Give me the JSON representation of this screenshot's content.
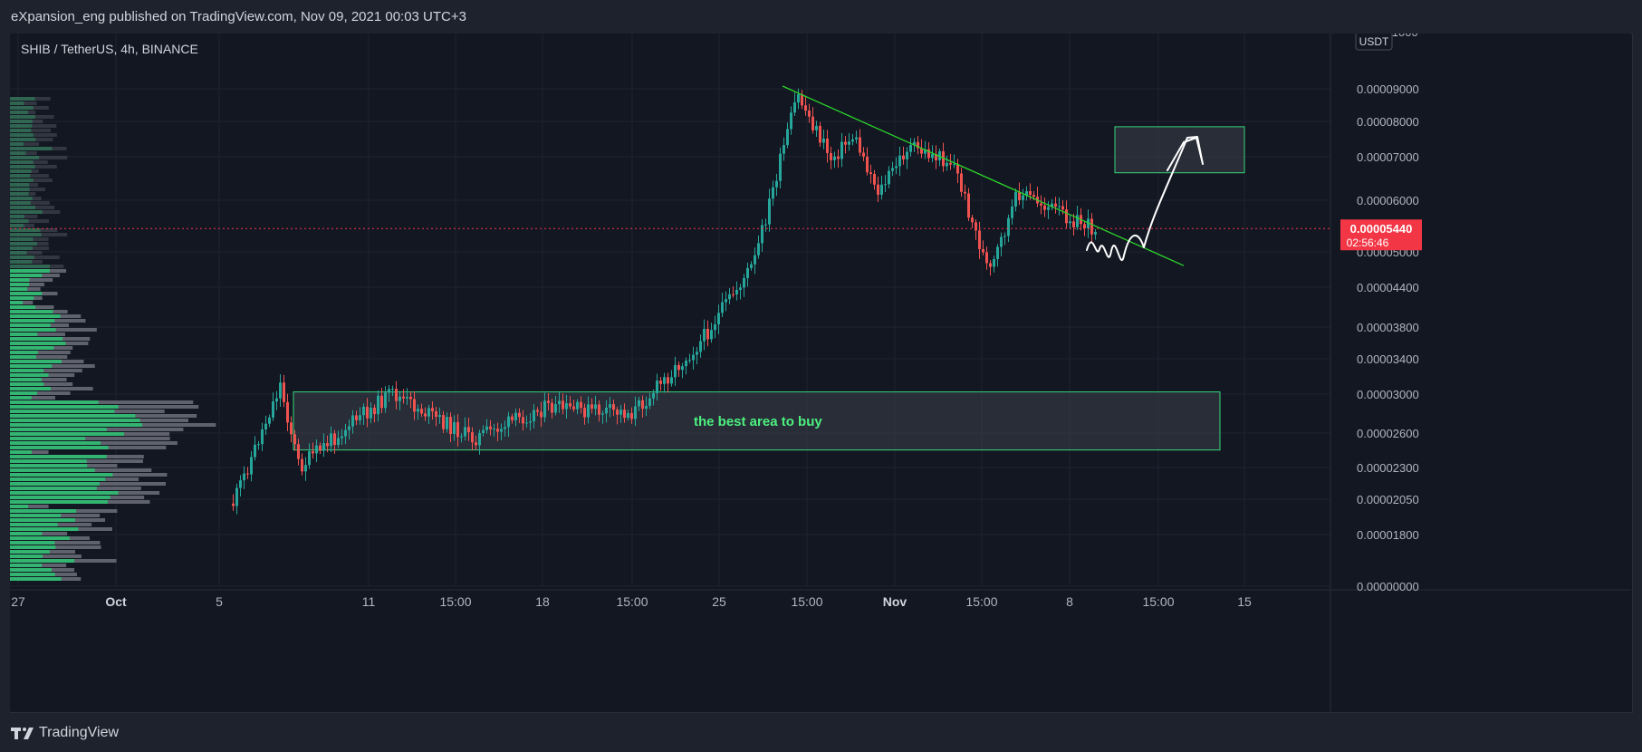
{
  "header": {
    "publish_info": "eXpansion_eng published on TradingView.com, Nov 09, 2021 00:03 UTC+3"
  },
  "chart_title": "SHIB / TetherUS, 4h, BINANCE",
  "footer": {
    "brand": "TradingView"
  },
  "colors": {
    "background": "#131722",
    "up_candle": "#26a69a",
    "down_candle": "#ef5350",
    "grid": "#1f2330",
    "trendline": "#2bd42b",
    "zone_border": "#37d67a",
    "zone_fill": "#3b3f4a",
    "zone_label": "#4cf07f",
    "price_tag": "#f23645",
    "volume_up": "#2fbf71",
    "volume_down": "#6d707a"
  },
  "chart_data": {
    "type": "candlestick",
    "symbol": "SHIB / TetherUS",
    "interval": "4h",
    "exchange": "BINANCE",
    "currency_label": "USDT",
    "y_scale": "log",
    "ylim": [
      1.5e-05,
      1.1e-05
    ],
    "y_ticks": [
      "0.00011000",
      "0.00009000",
      "0.00008000",
      "0.00007000",
      "0.00006000",
      "0.00005000",
      "0.00004400",
      "0.00003800",
      "0.00003400",
      "0.00003000",
      "0.00002600",
      "0.00002300",
      "0.00002050",
      "0.00001800",
      "0.00000000"
    ],
    "x_ticks": [
      "27",
      "Oct",
      "5",
      "11",
      "15:00",
      "18",
      "15:00",
      "25",
      "15:00",
      "Nov",
      "15:00",
      "8",
      "15:00",
      "15"
    ],
    "last_price": "0.00005440",
    "countdown": "02:56:46",
    "series": [
      {
        "date": "Oct 05",
        "price": 1.8e-05
      },
      {
        "date": "Oct 07",
        "price": 3.1e-05
      },
      {
        "date": "Oct 08",
        "price": 2.3e-05
      },
      {
        "date": "Oct 10",
        "price": 2.65e-05
      },
      {
        "date": "Oct 12",
        "price": 3e-05
      },
      {
        "date": "Oct 15",
        "price": 2.55e-05
      },
      {
        "date": "Oct 18",
        "price": 2.85e-05
      },
      {
        "date": "Oct 21",
        "price": 2.8e-05
      },
      {
        "date": "Oct 24",
        "price": 3.6e-05
      },
      {
        "date": "Oct 26",
        "price": 4.8e-05
      },
      {
        "date": "Oct 27",
        "price": 8.8e-05
      },
      {
        "date": "Oct 28",
        "price": 7e-05
      },
      {
        "date": "Oct 29",
        "price": 7.6e-05
      },
      {
        "date": "Oct 30",
        "price": 6.2e-05
      },
      {
        "date": "Nov 01",
        "price": 7.3e-05
      },
      {
        "date": "Nov 03",
        "price": 6.9e-05
      },
      {
        "date": "Nov 05",
        "price": 4.6e-05
      },
      {
        "date": "Nov 06",
        "price": 6.2e-05
      },
      {
        "date": "Nov 08",
        "price": 5.44e-05
      }
    ],
    "annotations": {
      "buy_zone_label": "the best area to buy",
      "buy_zone_range": [
        2.45e-05,
        3.02e-05
      ],
      "target_zone_range": [
        6.65e-05,
        7.85e-05
      ],
      "trendline": [
        [
          "Oct 27",
          9e-05
        ],
        [
          "Nov 10",
          4.95e-05
        ]
      ]
    },
    "volume_profile": true,
    "grid": true
  }
}
